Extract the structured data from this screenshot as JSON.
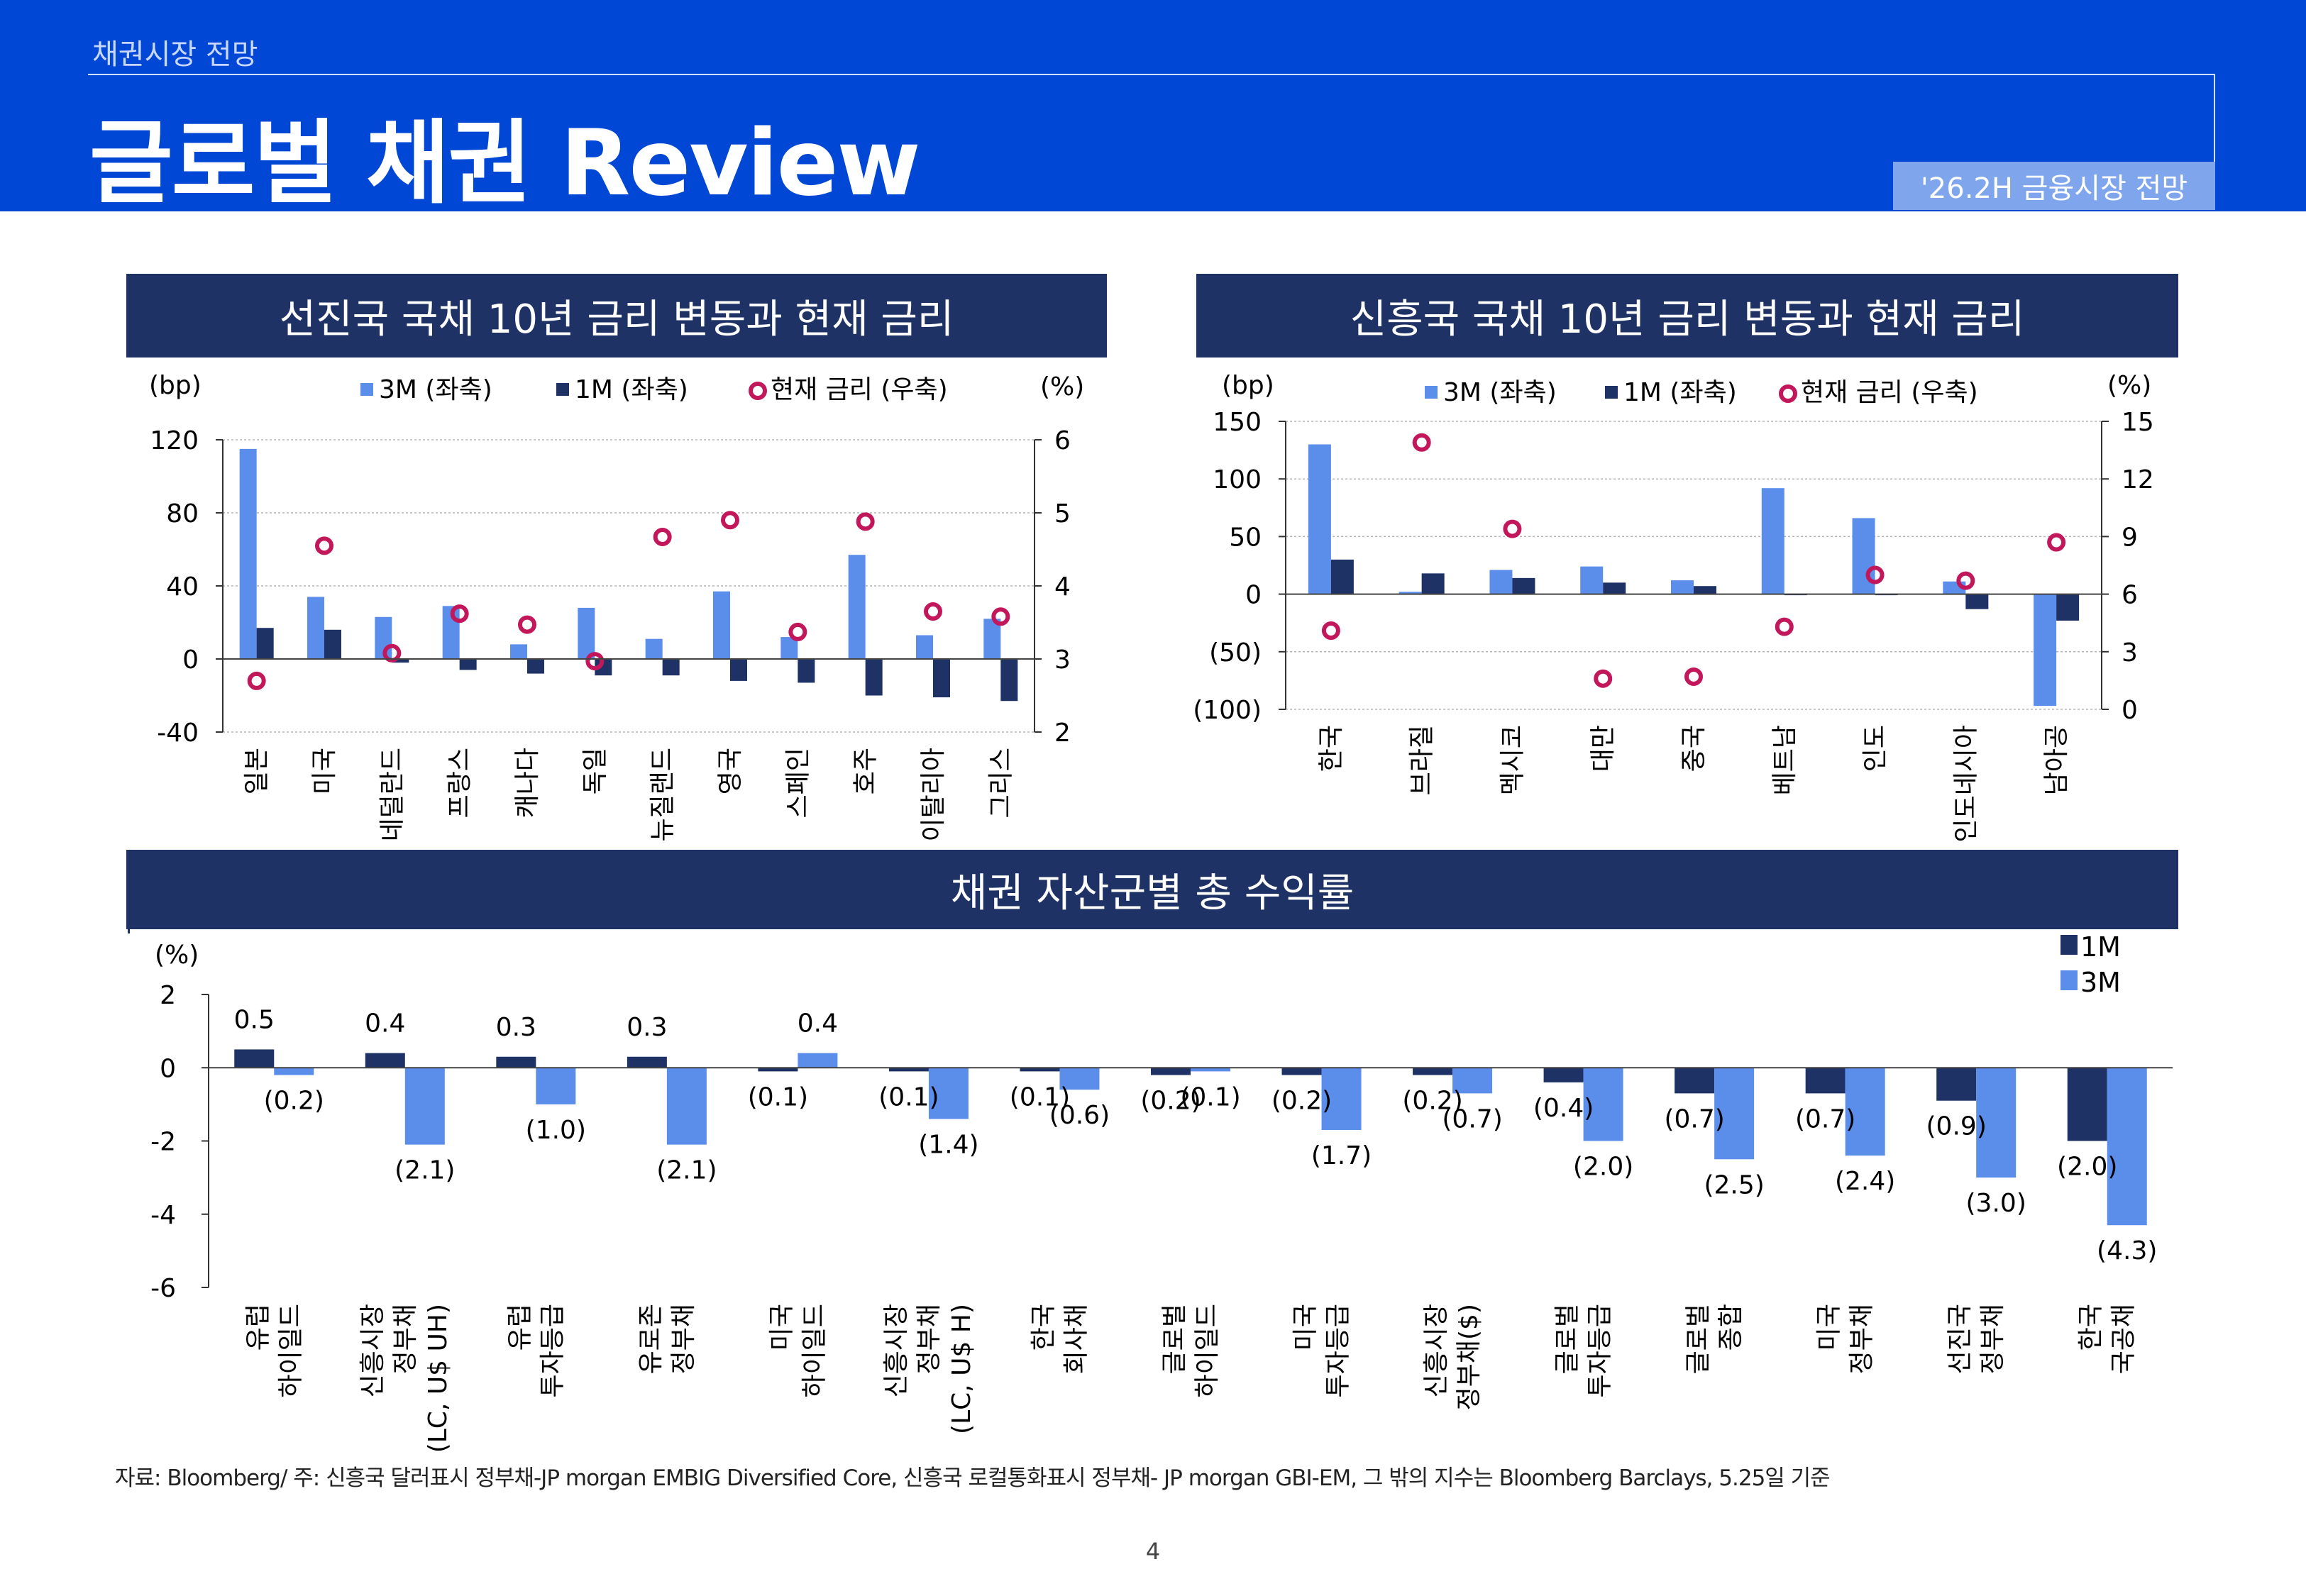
{
  "header": {
    "section": "채권시장 전망",
    "title": "글로벌 채권 Review",
    "tag": "'26.2H 금융시장 전망"
  },
  "colors": {
    "header": "#0047d6",
    "band": "#1f3266",
    "m3": "#5b8dea",
    "m1": "#1f3266",
    "marker": "#c2185b"
  },
  "charts": {
    "developed": {
      "title": "선진국 국채 10년 금리 변동과 현재 금리",
      "left_unit": "(bp)",
      "right_unit": "(%)",
      "legend": {
        "m3": "3M (좌축)",
        "m1": "1M (좌축)",
        "rate": "현재 금리 (우축)"
      }
    },
    "emerging": {
      "title": "신흥국 국채 10년 금리 변동과 현재 금리",
      "left_unit": "(bp)",
      "right_unit": "(%)",
      "legend": {
        "m3": "3M (좌축)",
        "m1": "1M (좌축)",
        "rate": "현재 금리 (우축)"
      }
    },
    "returns": {
      "title": "채권 자산군별 총 수익률",
      "unit": "(%)",
      "legend": {
        "m1": "1M",
        "m3": "3M"
      }
    }
  },
  "chart_data": [
    {
      "type": "bar",
      "title": "선진국 국채 10년 금리 변동과 현재 금리",
      "categories": [
        "일본",
        "미국",
        "네덜란드",
        "프랑스",
        "캐나다",
        "독일",
        "뉴질랜드",
        "영국",
        "스페인",
        "호주",
        "이탈리아",
        "그리스"
      ],
      "series": [
        {
          "name": "3M (좌축)",
          "axis": "left",
          "values": [
            115,
            34,
            23,
            29,
            8,
            28,
            11,
            37,
            12,
            57,
            13,
            22
          ]
        },
        {
          "name": "1M (좌축)",
          "axis": "left",
          "values": [
            17,
            16,
            -2,
            -6,
            -8,
            -9,
            -9,
            -12,
            -13,
            -20,
            -21,
            -23
          ]
        },
        {
          "name": "현재 금리 (우축)",
          "axis": "right",
          "type": "scatter",
          "values": [
            2.7,
            4.55,
            3.08,
            3.62,
            3.47,
            2.97,
            4.67,
            4.9,
            3.37,
            4.88,
            3.65,
            3.58
          ]
        }
      ],
      "yleft": {
        "min": -40,
        "max": 120,
        "ticks": [
          "-40",
          "0",
          "40",
          "80",
          "120"
        ]
      },
      "yright": {
        "min": 2,
        "max": 6,
        "ticks": [
          "2",
          "3",
          "4",
          "5",
          "6"
        ]
      }
    },
    {
      "type": "bar",
      "title": "신흥국 국채 10년 금리 변동과 현재 금리",
      "categories": [
        "한국",
        "브라질",
        "멕시코",
        "대만",
        "중국",
        "베트남",
        "인도",
        "인도네시아",
        "남아공"
      ],
      "series": [
        {
          "name": "3M (좌축)",
          "axis": "left",
          "values": [
            130,
            2,
            21,
            24,
            12,
            92,
            66,
            11,
            -97
          ]
        },
        {
          "name": "1M (좌축)",
          "axis": "left",
          "values": [
            30,
            18,
            14,
            10,
            7,
            0,
            0,
            -13,
            -23
          ]
        },
        {
          "name": "현재 금리 (우축)",
          "axis": "right",
          "type": "scatter",
          "values": [
            4.1,
            13.9,
            9.4,
            1.6,
            1.7,
            4.3,
            7.0,
            6.7,
            8.7
          ]
        }
      ],
      "yleft": {
        "min": -100,
        "max": 150,
        "ticks": [
          "(100)",
          "(50)",
          "0",
          "50",
          "100",
          "150"
        ]
      },
      "yright": {
        "min": 0,
        "max": 15,
        "ticks": [
          "0",
          "3",
          "6",
          "9",
          "12",
          "15"
        ]
      }
    },
    {
      "type": "bar",
      "title": "채권 자산군별 총 수익률",
      "categories": [
        [
          "유럽",
          "하이일드"
        ],
        [
          "신흥시장",
          "정부채",
          "(LC, U$ UH)"
        ],
        [
          "유럽",
          "투자등급"
        ],
        [
          "유로존",
          "정부채"
        ],
        [
          "미국",
          "하이일드"
        ],
        [
          "신흥시장",
          "정부채",
          "(LC, U$ H)"
        ],
        [
          "한국",
          "회사채"
        ],
        [
          "글로벌",
          "하이일드"
        ],
        [
          "미국",
          "투자등급"
        ],
        [
          "신흥시장",
          "정부채($)"
        ],
        [
          "글로벌",
          "투자등급"
        ],
        [
          "글로벌",
          "종합"
        ],
        [
          "미국",
          "정부채"
        ],
        [
          "선진국",
          "정부채"
        ],
        [
          "한국",
          "국공채"
        ]
      ],
      "series": [
        {
          "name": "1M",
          "values": [
            0.5,
            0.4,
            0.3,
            0.3,
            -0.1,
            -0.1,
            -0.1,
            -0.2,
            -0.2,
            -0.2,
            -0.4,
            -0.7,
            -0.7,
            -0.9,
            -2.0
          ],
          "labels": [
            "0.5",
            "0.4",
            "0.3",
            "0.3",
            "(0.1)",
            "(0.1)",
            "(0.1)",
            "(0.2)",
            "(0.2)",
            "(0.2)",
            "(0.4)",
            "(0.7)",
            "(0.7)",
            "(0.9)",
            "(2.0)"
          ]
        },
        {
          "name": "3M",
          "values": [
            -0.2,
            -2.1,
            -1.0,
            -2.1,
            0.4,
            -1.4,
            -0.6,
            -0.1,
            -1.7,
            -0.7,
            -2.0,
            -2.5,
            -2.4,
            -3.0,
            -4.3
          ],
          "labels": [
            "(0.2)",
            "(2.1)",
            "(1.0)",
            "(2.1)",
            "0.4",
            "(1.4)",
            "(0.6)",
            "(0.1)",
            "(1.7)",
            "(0.7)",
            "(2.0)",
            "(2.5)",
            "(2.4)",
            "(3.0)",
            "(4.3)"
          ]
        }
      ],
      "ylim": [
        -6,
        2
      ],
      "yticks": [
        "-6",
        "-4",
        "-2",
        "0",
        "2"
      ]
    }
  ],
  "footer": {
    "source": "자료: Bloomberg/ 주: 신흥국 달러표시 정부채-JP morgan EMBIG Diversified Core, 신흥국 로컬통화표시 정부채- JP morgan GBI-EM, 그 밖의 지수는 Bloomberg Barclays, 5.25일 기준",
    "page": "4"
  }
}
